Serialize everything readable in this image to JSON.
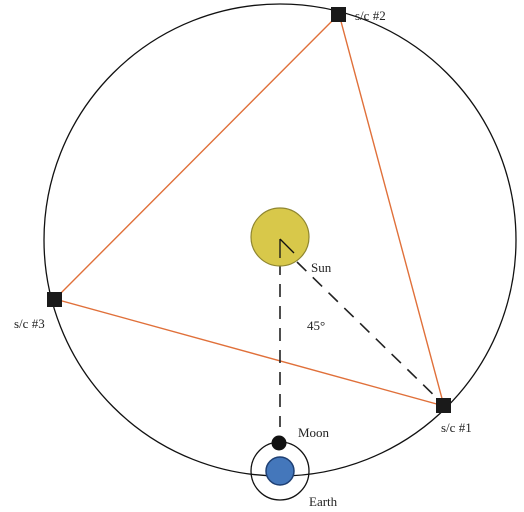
{
  "labels": {
    "sc2": "s/c #2",
    "sc3": "s/c #3",
    "sc1": "s/c #1",
    "sun": "Sun",
    "angle": "45°",
    "moon": "Moon",
    "earth": "Earth"
  },
  "colors": {
    "orbit": "#111111",
    "triangle": "#e0703a",
    "spacecraft": "#1a1a1a",
    "sun_fill": "#d8c84a",
    "sun_stroke": "#8f8630",
    "earth_fill": "#4477bb",
    "earth_stroke": "#1e3f73",
    "moon": "#111111",
    "dashed": "#222222"
  },
  "angle_degrees": 45
}
